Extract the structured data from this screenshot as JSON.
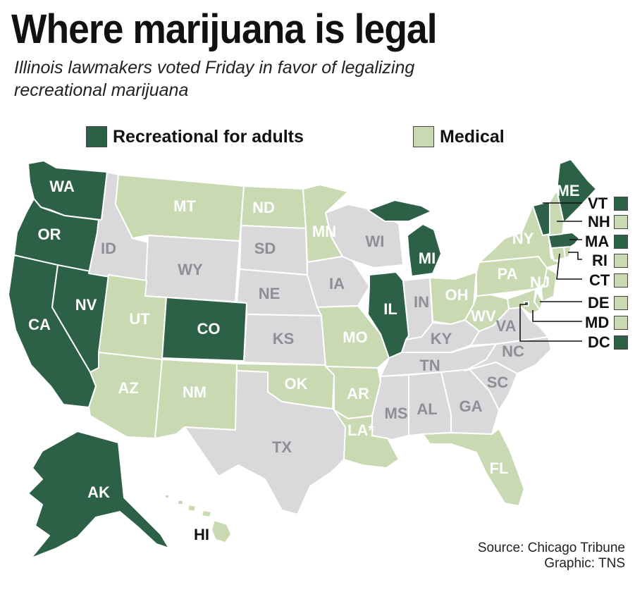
{
  "title": "Where marijuana is legal",
  "subtitle": "Illinois lawmakers voted Friday in favor of legalizing recreational marijuana",
  "colors": {
    "recreational": "#2d6147",
    "medical": "#c9d9b2",
    "none": "#d9d9dc",
    "border": "#ffffff"
  },
  "legend": [
    {
      "label": "Recreational for adults",
      "status": "recreational"
    },
    {
      "label": "Medical",
      "status": "medical"
    }
  ],
  "states": {
    "WA": "recreational",
    "OR": "recreational",
    "CA": "recreational",
    "NV": "recreational",
    "AK": "recreational",
    "CO": "recreational",
    "IL": "recreational",
    "MI": "recreational",
    "ME": "recreational",
    "VT": "recreational",
    "MA": "recreational",
    "DC": "recreational",
    "MT": "medical",
    "ND": "medical",
    "MN": "medical",
    "AZ": "medical",
    "NM": "medical",
    "UT": "medical",
    "OK": "medical",
    "AR": "medical",
    "LA*": "medical",
    "MO": "medical",
    "OH": "medical",
    "WV": "medical",
    "PA": "medical",
    "NY": "medical",
    "FL": "medical",
    "HI": "medical",
    "NH": "medical",
    "RI": "medical",
    "CT": "medical",
    "NJ": "medical",
    "DE": "medical",
    "MD": "medical",
    "ID": "none",
    "WY": "none",
    "SD": "none",
    "NE": "none",
    "KS": "none",
    "IA": "none",
    "WI": "none",
    "TX": "none",
    "IN": "none",
    "KY": "none",
    "TN": "none",
    "MS": "none",
    "AL": "none",
    "GA": "none",
    "SC": "none",
    "NC": "none",
    "VA": "none"
  },
  "northeast_callouts": [
    "VT",
    "NH",
    "MA",
    "RI",
    "CT",
    "DE",
    "MD",
    "DC"
  ],
  "source": "Source: Chicago Tribune",
  "credit": "Graphic: TNS"
}
